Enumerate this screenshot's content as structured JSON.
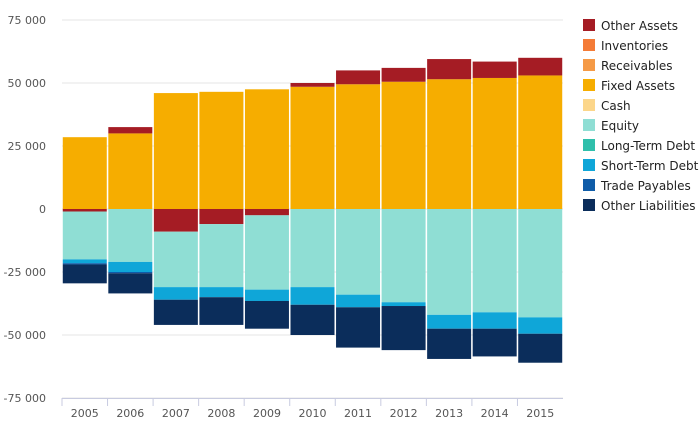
{
  "chart_data": {
    "type": "bar",
    "stacked": true,
    "title": "",
    "xlabel": "",
    "ylabel": "",
    "ylim": [
      -75000,
      75000
    ],
    "y_ticks": [
      {
        "value": 75000,
        "label": "75 000"
      },
      {
        "value": 50000,
        "label": "50 000"
      },
      {
        "value": 25000,
        "label": "25 000"
      },
      {
        "value": 0,
        "label": "0"
      },
      {
        "value": -25000,
        "label": "-25 000"
      },
      {
        "value": -50000,
        "label": "-50 000"
      },
      {
        "value": -75000,
        "label": "-75 000"
      }
    ],
    "grid": true,
    "legend_position": "right",
    "categories": [
      "2005",
      "2006",
      "2007",
      "2008",
      "2009",
      "2010",
      "2011",
      "2012",
      "2013",
      "2014",
      "2015"
    ],
    "series": [
      {
        "name": "Other Assets",
        "color": "#a51c24",
        "values": [
          0,
          0,
          0,
          0,
          0,
          1500,
          5500,
          5500,
          8000,
          6500,
          7000
        ]
      },
      {
        "name": "Inventories",
        "color": "#f47b37",
        "values": [
          0,
          0,
          0,
          0,
          0,
          0,
          0,
          0,
          0,
          0,
          0
        ]
      },
      {
        "name": "Receivables",
        "color": "#f59a46",
        "values": [
          0,
          0,
          0,
          0,
          0,
          0,
          0,
          0,
          0,
          0,
          0
        ]
      },
      {
        "name": "Fixed Assets",
        "color": "#f6ad00",
        "values": [
          28500,
          30000,
          46000,
          46500,
          47500,
          48500,
          49500,
          50500,
          51500,
          52000,
          53000
        ]
      },
      {
        "name": "Cash",
        "color": "#fcd68a",
        "values": [
          0,
          0,
          0,
          0,
          0,
          0,
          0,
          0,
          0,
          0,
          0
        ]
      },
      {
        "name": "Equity",
        "color": "#8fded4",
        "values": [
          -19000,
          -21000,
          -22000,
          -25000,
          -29500,
          -31000,
          -34000,
          -37000,
          -42000,
          -41000,
          -43000
        ]
      },
      {
        "name": "Long-Term Debt",
        "color": "#2fbfab",
        "values": [
          0,
          0,
          0,
          0,
          0,
          0,
          0,
          0,
          0,
          0,
          0
        ]
      },
      {
        "name": "Short-Term Debt",
        "color": "#0fa6d8",
        "values": [
          -1500,
          -4000,
          -5000,
          -4000,
          -4500,
          -7000,
          -5000,
          -1500,
          -5500,
          -6500,
          -6500
        ]
      },
      {
        "name": "Trade Payables",
        "color": "#0f5ca8",
        "values": [
          -500,
          -500,
          0,
          0,
          0,
          0,
          0,
          0,
          0,
          0,
          0
        ]
      },
      {
        "name": "Other Liabilities",
        "color": "#0b2d5b",
        "values": [
          -7500,
          -8000,
          -10000,
          -11000,
          -11000,
          -12000,
          -16000,
          -17500,
          -12000,
          -11000,
          -11500
        ]
      }
    ],
    "special_offsets": {
      "2005": {
        "Other Assets_negative": -1000
      },
      "2006": {
        "Other Assets": 2500
      },
      "2007": {
        "Other Assets_negative": -9000
      },
      "2008": {
        "Other Assets_negative": -6000
      },
      "2009": {
        "Other Assets_negative": -2500
      }
    }
  }
}
